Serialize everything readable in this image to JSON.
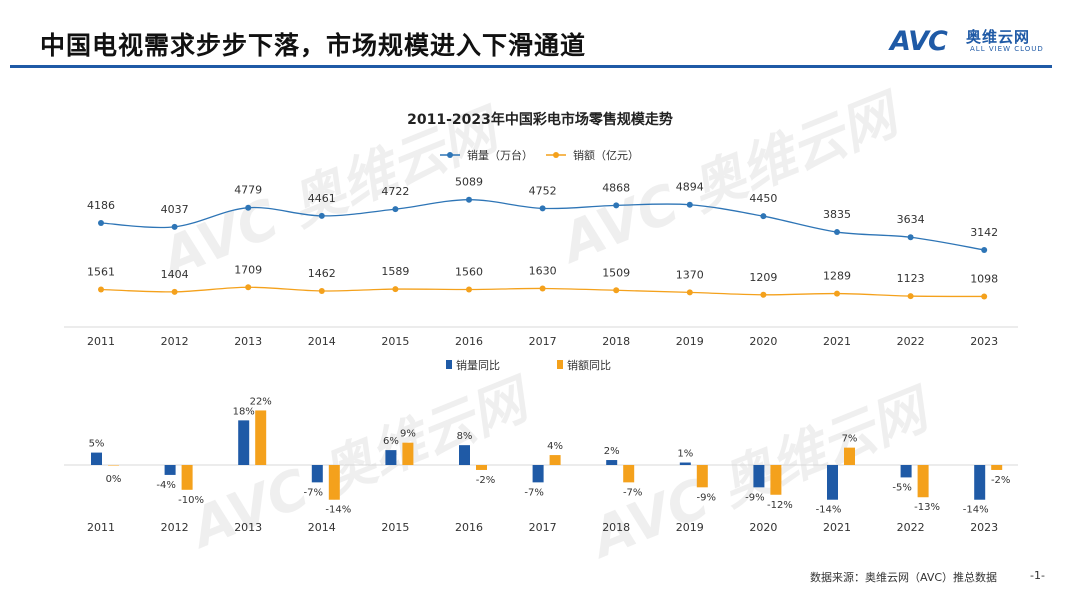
{
  "header": {
    "title": "中国电视需求步步下落，市场规模进入下滑通道",
    "logo_mark": "AVC",
    "logo_cn": "奥维云网",
    "logo_en": "ALL VIEW CLOUD"
  },
  "colors": {
    "blue": "#2e75b6",
    "orange": "#f4a11c",
    "bar_blue": "#1f5aa6",
    "accent": "#1f5aa6"
  },
  "watermark": {
    "text": "AVC 奥维云网"
  },
  "chart_data": [
    {
      "type": "line",
      "title": "2011-2023年中国彩电市场零售规模走势",
      "x": [
        "2011",
        "2012",
        "2013",
        "2014",
        "2015",
        "2016",
        "2017",
        "2018",
        "2019",
        "2020",
        "2021",
        "2022",
        "2023"
      ],
      "series": [
        {
          "name": "销量（万台）",
          "values": [
            4186,
            4037,
            4779,
            4461,
            4722,
            5089,
            4752,
            4868,
            4894,
            4450,
            3835,
            3634,
            3142
          ]
        },
        {
          "name": "销额（亿元）",
          "values": [
            1561,
            1404,
            1709,
            1462,
            1589,
            1560,
            1630,
            1509,
            1370,
            1209,
            1289,
            1123,
            1098
          ]
        }
      ],
      "legend_position": "top-center",
      "grid": false
    },
    {
      "type": "bar",
      "categories": [
        "2011",
        "2012",
        "2013",
        "2014",
        "2015",
        "2016",
        "2017",
        "2018",
        "2019",
        "2020",
        "2021",
        "2022",
        "2023"
      ],
      "series": [
        {
          "name": "销量同比",
          "values": [
            5,
            -4,
            18,
            -7,
            6,
            8,
            -7,
            2,
            1,
            -9,
            -14,
            -5,
            -14
          ]
        },
        {
          "name": "销额同比",
          "values": [
            0,
            -10,
            22,
            -14,
            9,
            -2,
            4,
            -7,
            -9,
            -12,
            7,
            -13,
            -2
          ]
        }
      ],
      "unit": "%",
      "legend_position": "top-center",
      "grid": false
    }
  ],
  "footer": {
    "source": "数据来源：奥维云网（AVC）推总数据",
    "page": "-1-"
  }
}
